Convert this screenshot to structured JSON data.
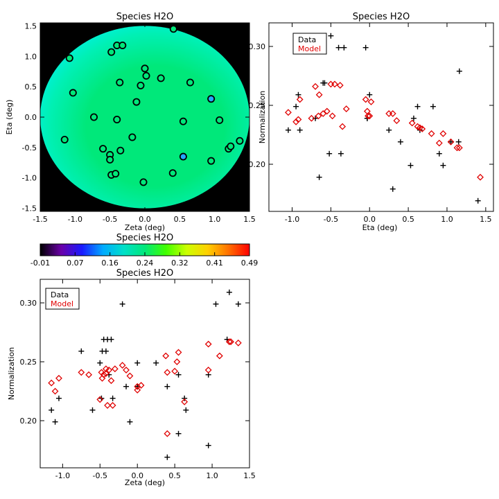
{
  "chart_data": [
    {
      "id": "map",
      "type": "scatter",
      "title": "Species H2O",
      "xlabel": "Zeta (deg)",
      "ylabel": "Eta (deg)",
      "xlim": [
        -1.5,
        1.5
      ],
      "ylim": [
        -1.55,
        1.55
      ],
      "xticks": [
        -1.5,
        -1.0,
        -0.5,
        0.0,
        0.5,
        1.0,
        1.5
      ],
      "xtick_labels": [
        "-1.5",
        "-1.0",
        "-0.5",
        "0.0",
        "0.5",
        "1.0",
        "1.5"
      ],
      "yticks": [
        -1.5,
        -1.0,
        -0.5,
        0.0,
        0.5,
        1.0,
        1.5
      ],
      "ytick_labels": [
        "-1.5",
        "-1.0",
        "-0.5",
        "0.0",
        "0.5",
        "1.0",
        "1.5"
      ],
      "background": "#000000",
      "field_colors": {
        "upper_left": "#00e6a8",
        "top": "#00f0dc",
        "center": "#00e87a",
        "lower_right": "#00f0b4"
      },
      "points": [
        {
          "x": -1.08,
          "y": 0.97
        },
        {
          "x": -1.03,
          "y": 0.4
        },
        {
          "x": -1.15,
          "y": -0.37
        },
        {
          "x": -0.73,
          "y": 0.0
        },
        {
          "x": -0.6,
          "y": -0.52
        },
        {
          "x": -0.48,
          "y": 1.07
        },
        {
          "x": -0.4,
          "y": 1.18
        },
        {
          "x": -0.32,
          "y": 1.18
        },
        {
          "x": -0.36,
          "y": 0.57
        },
        {
          "x": -0.5,
          "y": -0.62
        },
        {
          "x": -0.5,
          "y": -0.7
        },
        {
          "x": -0.4,
          "y": -0.04
        },
        {
          "x": -0.35,
          "y": -0.55
        },
        {
          "x": -0.18,
          "y": -0.33
        },
        {
          "x": -0.12,
          "y": 0.25
        },
        {
          "x": -0.06,
          "y": 0.52
        },
        {
          "x": 0.0,
          "y": 0.8
        },
        {
          "x": 0.02,
          "y": 0.68
        },
        {
          "x": -0.48,
          "y": -0.95
        },
        {
          "x": -0.42,
          "y": -0.93
        },
        {
          "x": -0.02,
          "y": -1.07
        },
        {
          "x": 0.23,
          "y": 0.64
        },
        {
          "x": 0.41,
          "y": 1.45
        },
        {
          "x": 0.4,
          "y": -0.92
        },
        {
          "x": 0.55,
          "y": -0.07
        },
        {
          "x": 0.55,
          "y": -0.65,
          "color": "#22aaff"
        },
        {
          "x": 0.65,
          "y": 0.57
        },
        {
          "x": 0.95,
          "y": 0.3,
          "color": "#22aaff"
        },
        {
          "x": 0.95,
          "y": -0.72
        },
        {
          "x": 1.07,
          "y": -0.05
        },
        {
          "x": 1.2,
          "y": -0.52
        },
        {
          "x": 1.23,
          "y": -0.48
        },
        {
          "x": 1.36,
          "y": -0.39
        }
      ],
      "marker_fill": "#00e87a",
      "marker_edge": "#000000"
    },
    {
      "id": "colorbar",
      "type": "heatmap",
      "title": "Species H2O",
      "vmin": -0.01,
      "vmax": 0.49,
      "tick_labels": [
        "-0.01",
        "0.07",
        "0.16",
        "0.24",
        "0.32",
        "0.41",
        "0.49"
      ],
      "colormap": [
        "#000000",
        "#6a00a8",
        "#1a1aff",
        "#00aaff",
        "#00e0c8",
        "#00e87a",
        "#40ff00",
        "#ccff00",
        "#ffd000",
        "#ff7000",
        "#ff0000"
      ]
    },
    {
      "id": "eta",
      "type": "scatter",
      "title": "Species H2O",
      "xlabel": "Eta (deg)",
      "ylabel": "Normalization",
      "xlim": [
        -1.3,
        1.6
      ],
      "ylim": [
        0.16,
        0.32
      ],
      "xticks": [
        -1.0,
        -0.5,
        0.0,
        0.5,
        1.0,
        1.5
      ],
      "xtick_labels": [
        "-1.0",
        "-0.5",
        "0.0",
        "0.5",
        "1.0",
        "1.5"
      ],
      "yticks": [
        0.2,
        0.25,
        0.3
      ],
      "ytick_labels": [
        "0.20",
        "0.25",
        "0.30"
      ],
      "legend": {
        "placement": "top-left",
        "entries": [
          {
            "label": "Data",
            "color": "#000000"
          },
          {
            "label": "Model",
            "color": "#e00000"
          }
        ]
      },
      "series": [
        {
          "name": "Data",
          "marker": "plus",
          "color": "#000000",
          "x": [
            -1.05,
            -0.95,
            -0.92,
            -0.9,
            -0.7,
            -0.65,
            -0.6,
            -0.58,
            -0.52,
            -0.5,
            -0.4,
            -0.37,
            -0.33,
            -0.05,
            -0.03,
            -0.03,
            0.0,
            0.25,
            0.3,
            0.4,
            0.53,
            0.57,
            0.62,
            0.65,
            0.82,
            0.9,
            0.95,
            1.05,
            1.15,
            1.16,
            1.4
          ],
          "y": [
            0.229,
            0.249,
            0.259,
            0.229,
            0.239,
            0.189,
            0.269,
            0.269,
            0.209,
            0.309,
            0.299,
            0.209,
            0.299,
            0.299,
            0.239,
            0.239,
            0.259,
            0.229,
            0.179,
            0.219,
            0.199,
            0.239,
            0.249,
            0.229,
            0.249,
            0.209,
            0.199,
            0.219,
            0.219,
            0.279,
            0.169
          ]
        },
        {
          "name": "Model",
          "marker": "diamond",
          "color": "#e00000",
          "x": [
            -1.05,
            -0.95,
            -0.92,
            -0.9,
            -0.7,
            -0.65,
            -0.6,
            -0.55,
            -0.5,
            -0.45,
            -0.38,
            -0.35,
            -0.3,
            -0.05,
            -0.03,
            0.0,
            0.02,
            0.25,
            0.3,
            0.35,
            0.55,
            0.62,
            0.65,
            0.68,
            0.8,
            0.9,
            0.95,
            1.05,
            1.13,
            1.16,
            1.43,
            -0.48,
            -0.66,
            -0.75,
            -0.02
          ],
          "y": [
            0.244,
            0.236,
            0.238,
            0.255,
            0.266,
            0.259,
            0.243,
            0.245,
            0.268,
            0.268,
            0.267,
            0.232,
            0.247,
            0.255,
            0.245,
            0.241,
            0.253,
            0.243,
            0.243,
            0.237,
            0.235,
            0.232,
            0.231,
            0.23,
            0.226,
            0.218,
            0.226,
            0.219,
            0.214,
            0.214,
            0.189,
            0.241,
            0.241,
            0.239,
            0.241
          ]
        }
      ]
    },
    {
      "id": "zeta",
      "type": "scatter",
      "title": "Species H2O",
      "xlabel": "Zeta (deg)",
      "ylabel": "Normalization",
      "xlim": [
        -1.3,
        1.5
      ],
      "ylim": [
        0.16,
        0.32
      ],
      "xticks": [
        -1.0,
        -0.5,
        0.0,
        0.5,
        1.0,
        1.5
      ],
      "xtick_labels": [
        "-1.0",
        "-0.5",
        "0.0",
        "0.5",
        "1.0",
        "1.5"
      ],
      "yticks": [
        0.2,
        0.25,
        0.3
      ],
      "ytick_labels": [
        "0.20",
        "0.25",
        "0.30"
      ],
      "legend": {
        "placement": "top-left",
        "entries": [
          {
            "label": "Data",
            "color": "#000000"
          },
          {
            "label": "Model",
            "color": "#e00000"
          }
        ]
      },
      "series": [
        {
          "name": "Data",
          "marker": "plus",
          "color": "#000000",
          "x": [
            -1.15,
            -1.1,
            -1.05,
            -0.75,
            -0.6,
            -0.48,
            -0.47,
            -0.45,
            -0.42,
            -0.4,
            -0.35,
            -0.33,
            -0.2,
            -0.15,
            -0.1,
            0.0,
            0.0,
            0.25,
            0.4,
            0.4,
            0.55,
            0.55,
            0.63,
            0.65,
            0.95,
            0.95,
            1.05,
            1.2,
            1.23,
            1.35,
            -0.5,
            -0.38
          ],
          "y": [
            0.209,
            0.199,
            0.219,
            0.259,
            0.209,
            0.219,
            0.259,
            0.269,
            0.259,
            0.269,
            0.269,
            0.219,
            0.299,
            0.229,
            0.199,
            0.249,
            0.229,
            0.249,
            0.169,
            0.229,
            0.189,
            0.239,
            0.219,
            0.209,
            0.179,
            0.239,
            0.299,
            0.269,
            0.309,
            0.299,
            0.249,
            0.239
          ]
        },
        {
          "name": "Model",
          "marker": "diamond",
          "color": "#e00000",
          "x": [
            -1.15,
            -1.1,
            -1.05,
            -0.75,
            -0.65,
            -0.48,
            -0.47,
            -0.45,
            -0.42,
            -0.4,
            -0.38,
            -0.35,
            -0.33,
            -0.2,
            -0.15,
            -0.1,
            0.0,
            0.0,
            0.05,
            0.38,
            0.4,
            0.4,
            0.5,
            0.53,
            0.55,
            0.63,
            0.95,
            0.95,
            1.1,
            1.23,
            1.25,
            1.35,
            -0.5,
            -0.3,
            -0.42
          ],
          "y": [
            0.232,
            0.225,
            0.236,
            0.241,
            0.239,
            0.241,
            0.236,
            0.239,
            0.244,
            0.213,
            0.243,
            0.234,
            0.213,
            0.247,
            0.243,
            0.238,
            0.229,
            0.226,
            0.23,
            0.255,
            0.189,
            0.241,
            0.242,
            0.25,
            0.258,
            0.216,
            0.265,
            0.243,
            0.255,
            0.267,
            0.267,
            0.266,
            0.218,
            0.244,
            0.24
          ]
        }
      ]
    }
  ]
}
